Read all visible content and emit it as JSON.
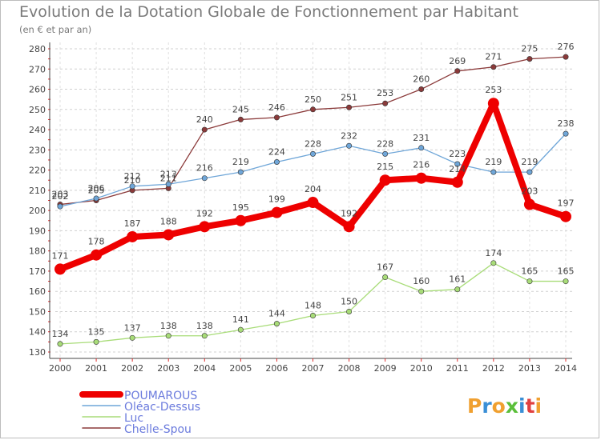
{
  "title": "Evolution de la Dotation Globale de Fonctionnement par Habitant",
  "subtitle": "(en € et par an)",
  "logo_text": "Proxiti",
  "chart_data": {
    "type": "line",
    "title": "Evolution de la Dotation Globale de Fonctionnement par Habitant",
    "subtitle": "(en € et par an)",
    "xlabel": "",
    "ylabel": "",
    "ylim": [
      130,
      280
    ],
    "yticks": [
      130,
      140,
      150,
      160,
      170,
      180,
      190,
      200,
      210,
      220,
      230,
      240,
      250,
      260,
      270,
      280
    ],
    "grid": true,
    "legend_position": "bottom-left",
    "x": [
      "2000",
      "2001",
      "2002",
      "2003",
      "2004",
      "2005",
      "2006",
      "2007",
      "2008",
      "2009",
      "2010",
      "2011",
      "2012",
      "2013",
      "2014"
    ],
    "series": [
      {
        "name": "POUMAROUS",
        "color": "#ee0000",
        "values": [
          171,
          178,
          187,
          188,
          192,
          195,
          199,
          204,
          192,
          215,
          216,
          214,
          253,
          203,
          197
        ]
      },
      {
        "name": "Oléac-Dessus",
        "color": "#6fa6d8",
        "values": [
          202,
          206,
          212,
          213,
          216,
          219,
          224,
          228,
          232,
          228,
          231,
          223,
          219,
          219,
          238
        ]
      },
      {
        "name": "Luc",
        "color": "#a8dc78",
        "values": [
          134,
          135,
          137,
          138,
          138,
          141,
          144,
          148,
          150,
          167,
          160,
          161,
          174,
          165,
          165
        ]
      },
      {
        "name": "Chelle-Spou",
        "color": "#8b3a3a",
        "values": [
          203,
          205,
          210,
          211,
          240,
          245,
          246,
          250,
          251,
          253,
          260,
          269,
          271,
          275,
          276
        ]
      }
    ]
  }
}
